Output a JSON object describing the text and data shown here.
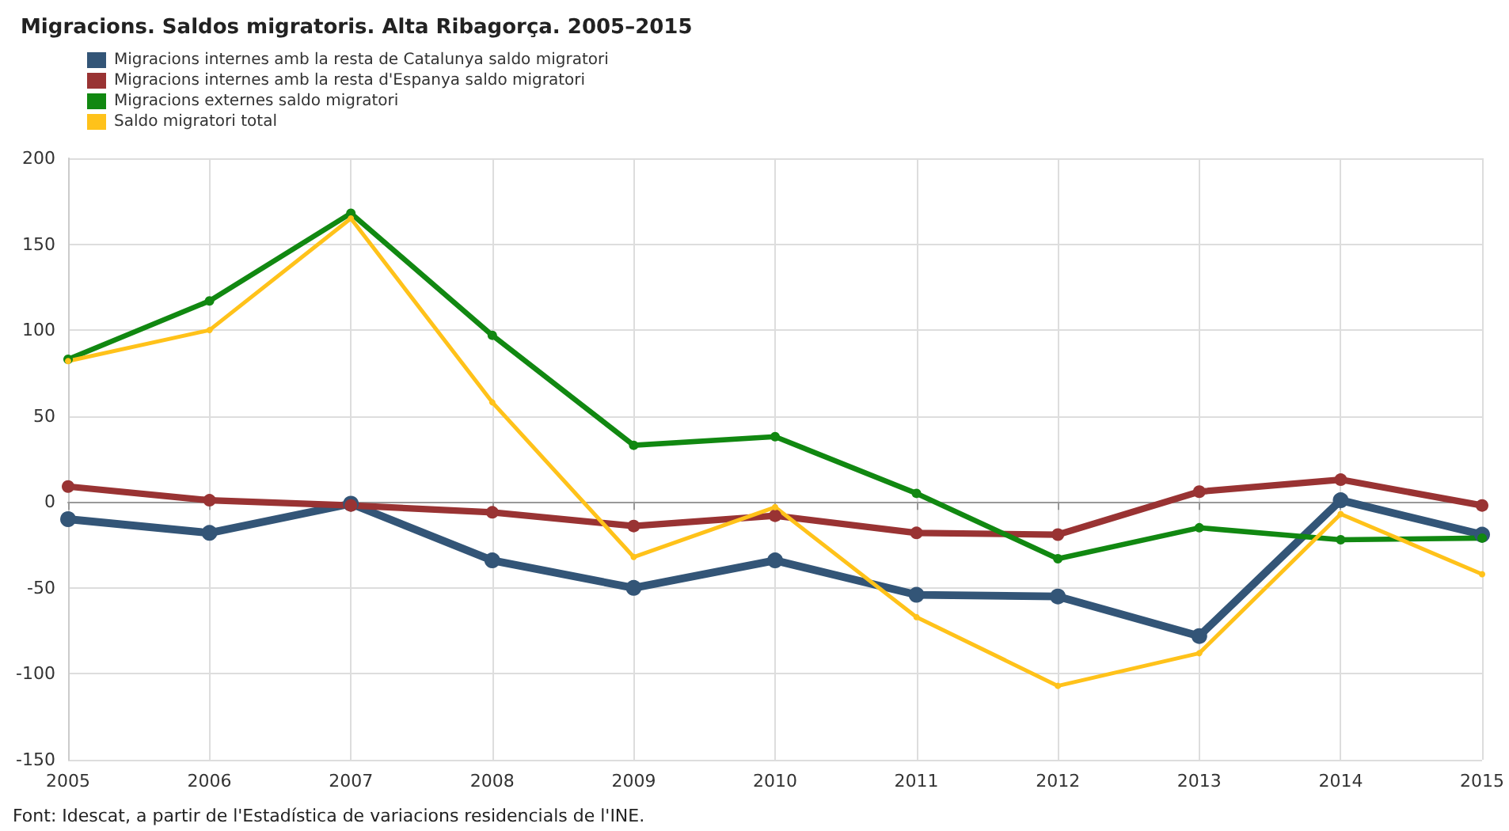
{
  "chart_data": {
    "type": "line",
    "title": "Migracions. Saldos migratoris. Alta Ribagorça. 2005–2015",
    "annotations": [
      "Font: Idescat, a partir de l'Estadística de variacions residencials de l'INE."
    ],
    "categories": [
      "2005",
      "2006",
      "2007",
      "2008",
      "2009",
      "2010",
      "2011",
      "2012",
      "2013",
      "2014",
      "2015"
    ],
    "series": [
      {
        "name": "Migracions internes amb la resta de Catalunya saldo migratori",
        "color": "#335577",
        "values": [
          -10,
          -18,
          -1,
          -34,
          -50,
          -34,
          -54,
          -55,
          -78,
          1,
          -19
        ]
      },
      {
        "name": "Migracions internes amb la resta d'Espanya saldo migratori",
        "color": "#993333",
        "values": [
          9,
          1,
          -2,
          -6,
          -14,
          -8,
          -18,
          -19,
          6,
          13,
          -2
        ]
      },
      {
        "name": "Migracions externes saldo migratori",
        "color": "#118811",
        "values": [
          83,
          117,
          168,
          97,
          33,
          38,
          5,
          -33,
          -15,
          -22,
          -21
        ]
      },
      {
        "name": "Saldo migratori total",
        "color": "#ffc21a",
        "values": [
          82,
          100,
          165,
          58,
          -32,
          -3,
          -67,
          -107,
          -88,
          -7,
          -42
        ]
      }
    ],
    "ylim": [
      -150,
      200
    ],
    "yticks": [
      -150,
      -100,
      -50,
      0,
      50,
      100,
      150,
      200
    ],
    "grid": true,
    "legend": "top left",
    "marker": "circle",
    "line_style": "solid"
  }
}
